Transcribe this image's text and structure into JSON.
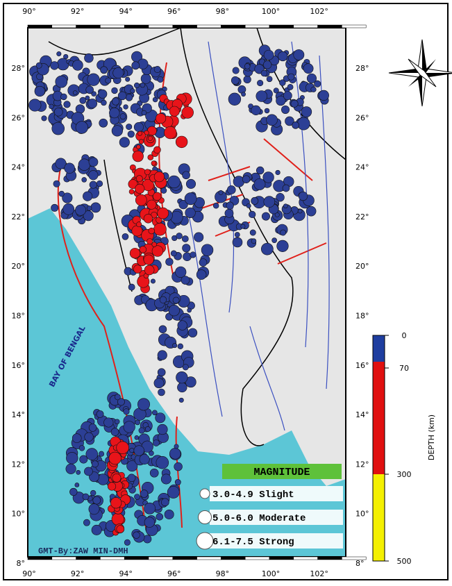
{
  "map": {
    "lon_labels": [
      "90°",
      "92°",
      "94°",
      "96°",
      "98°",
      "100°",
      "102°"
    ],
    "lat_labels": [
      "28°",
      "26°",
      "24°",
      "22°",
      "20°",
      "18°",
      "16°",
      "14°",
      "12°",
      "10°",
      "8°"
    ],
    "sea_label": "BAY OF BENGAL",
    "credit": "GMT-By:ZAW MIN-DMH"
  },
  "legend": {
    "title": "MAGNITUDE",
    "items": [
      "3.0-4.9 Slight",
      "5.0-6.0 Moderate",
      "6.1-7.5 Strong"
    ]
  },
  "depth_scale": {
    "title": "DEPTH (km)",
    "ticks": [
      "0",
      "70",
      "300",
      "500"
    ]
  }
}
